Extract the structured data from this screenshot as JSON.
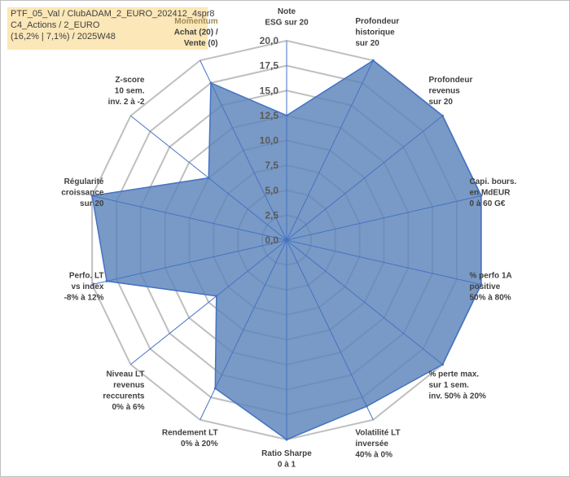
{
  "title_lines": [
    "PTF_05_Val / ClubADAM_2_EURO_202412_4spr8",
    "C4_Actions / 2_EURO",
    "(16,2% | 7,1%) / 2025W48"
  ],
  "colors": {
    "fill": "#5b84b9",
    "fill_opacity": 0.82,
    "stroke": "#4472c4",
    "grid": "#bfbfbf",
    "title_bg": "#fbe7b7"
  },
  "chart_data": {
    "type": "radar",
    "ylim": [
      0,
      20
    ],
    "ticks": [
      "0,0",
      "2,5",
      "5,0",
      "7,5",
      "10,0",
      "12,5",
      "15,0",
      "17,5",
      "20,0"
    ],
    "grid": true,
    "axes": [
      {
        "lines": [
          "Note",
          "ESG sur 20"
        ]
      },
      {
        "lines": [
          "Profondeur",
          "historique",
          "sur 20"
        ]
      },
      {
        "lines": [
          "Profondeur",
          "revenus",
          "sur 20"
        ]
      },
      {
        "lines": [
          "Capi. bours.",
          "en MdEUR",
          "0 à 60 G€"
        ]
      },
      {
        "lines": [
          "% perfo 1A",
          "positive",
          "50% à 80%"
        ]
      },
      {
        "lines": [
          "% perte max.",
          "sur 1 sem.",
          "inv. 50% à 20%"
        ]
      },
      {
        "lines": [
          "Volatilité LT",
          "inversée",
          "40% à 0%"
        ]
      },
      {
        "lines": [
          "Ratio Sharpe",
          "0 à 1"
        ]
      },
      {
        "lines": [
          "Rendement LT",
          "0% à 20%"
        ]
      },
      {
        "lines": [
          "Niveau LT",
          "revenus",
          "reccurents",
          "0% à 6%"
        ]
      },
      {
        "lines": [
          "Perfo. LT",
          "vs index",
          "-8% à 12%"
        ]
      },
      {
        "lines": [
          "Régularité",
          "croissance",
          "sur 20"
        ]
      },
      {
        "lines": [
          "Z-score",
          "10 sem.",
          "inv. 2 à -2"
        ]
      },
      {
        "lines": [
          "Momentum",
          "Achat (20) /",
          "Vente (0)"
        ]
      }
    ],
    "series": [
      {
        "values": [
          12.5,
          20,
          20,
          20,
          20,
          20,
          18.5,
          20,
          16.5,
          9,
          18.5,
          20,
          10,
          17.5
        ]
      }
    ]
  }
}
